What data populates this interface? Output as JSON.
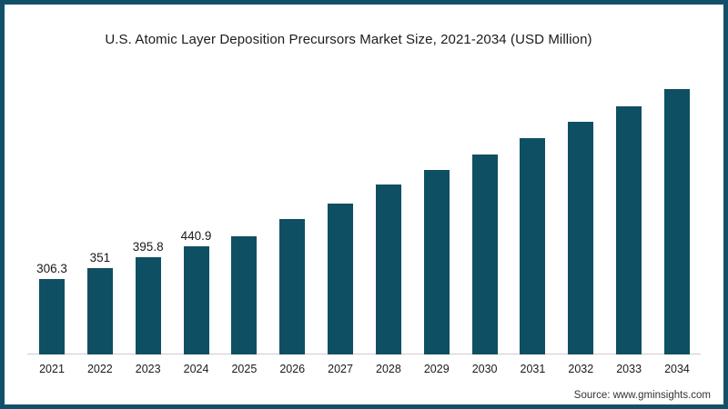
{
  "chart_data": {
    "type": "bar",
    "title": "U.S. Atomic Layer Deposition Precursors Market Size, 2021-2034 (USD Million)",
    "categories": [
      "2021",
      "2022",
      "2023",
      "2024",
      "2025",
      "2026",
      "2027",
      "2028",
      "2029",
      "2030",
      "2031",
      "2032",
      "2033",
      "2034"
    ],
    "values": [
      306.3,
      351,
      395.8,
      440.9,
      480,
      550,
      615,
      690,
      750,
      815,
      880,
      945,
      1010,
      1080
    ],
    "data_labels": [
      "306.3",
      "351",
      "395.8",
      "440.9",
      "",
      "",
      "",
      "",
      "",
      "",
      "",
      "",
      "",
      ""
    ],
    "xlabel": "",
    "ylabel": "",
    "ylim": [
      0,
      1100
    ],
    "grid": false,
    "legend": null,
    "source": "Source: www.gminsights.com"
  },
  "colors": {
    "bar": "#0e4f63",
    "frame": "#12506a",
    "axis_line": "#cccccc",
    "title_text": "#1b1b1b",
    "label_text": "#1a1a1a",
    "source_text": "#333333"
  }
}
